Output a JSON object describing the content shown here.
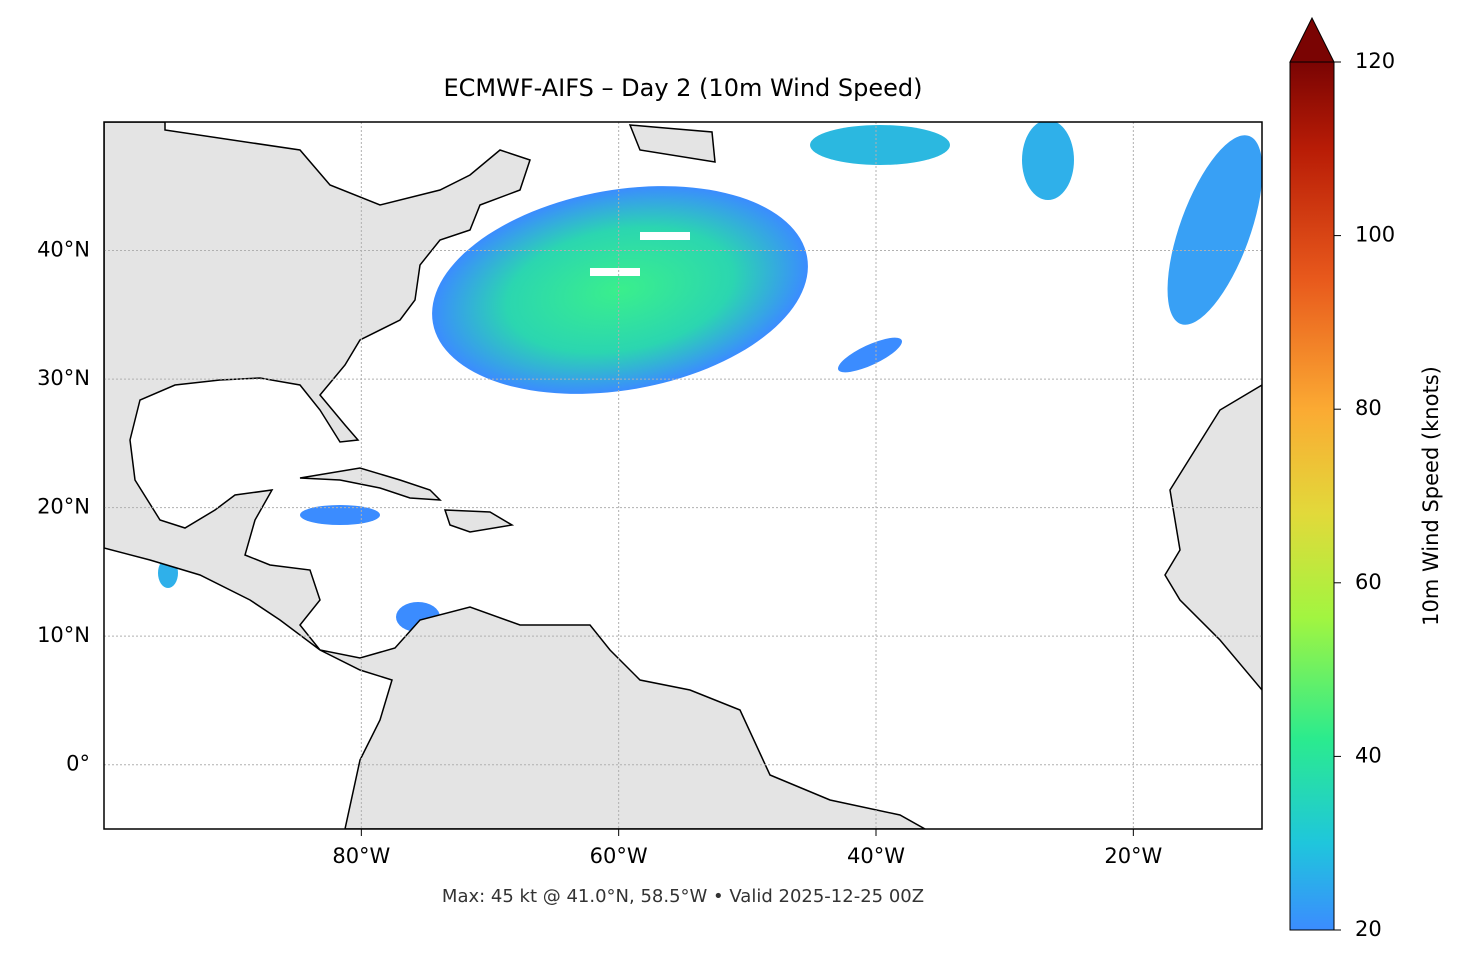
{
  "chart_data": {
    "type": "map",
    "title": "ECMWF-AIFS – Day 2 (10m Wind Speed)",
    "footer": "Max: 45 kt @ 41.0°N, 58.5°W • Valid 2025-12-25 00Z",
    "xlim": [
      -100,
      -10
    ],
    "ylim": [
      -5,
      50
    ],
    "xticks": [
      {
        "value": -80,
        "label": "80°W"
      },
      {
        "value": -60,
        "label": "60°W"
      },
      {
        "value": -40,
        "label": "40°W"
      },
      {
        "value": -20,
        "label": "20°W"
      }
    ],
    "yticks": [
      {
        "value": 0,
        "label": "0°"
      },
      {
        "value": 10,
        "label": "10°N"
      },
      {
        "value": 20,
        "label": "20°N"
      },
      {
        "value": 30,
        "label": "30°N"
      },
      {
        "value": 40,
        "label": "40°N"
      }
    ],
    "grid": true,
    "colorbar": {
      "label": "10m Wind Speed (knots)",
      "lim": [
        20,
        120
      ],
      "ticks": [
        20,
        40,
        60,
        80,
        100,
        120
      ]
    }
  }
}
